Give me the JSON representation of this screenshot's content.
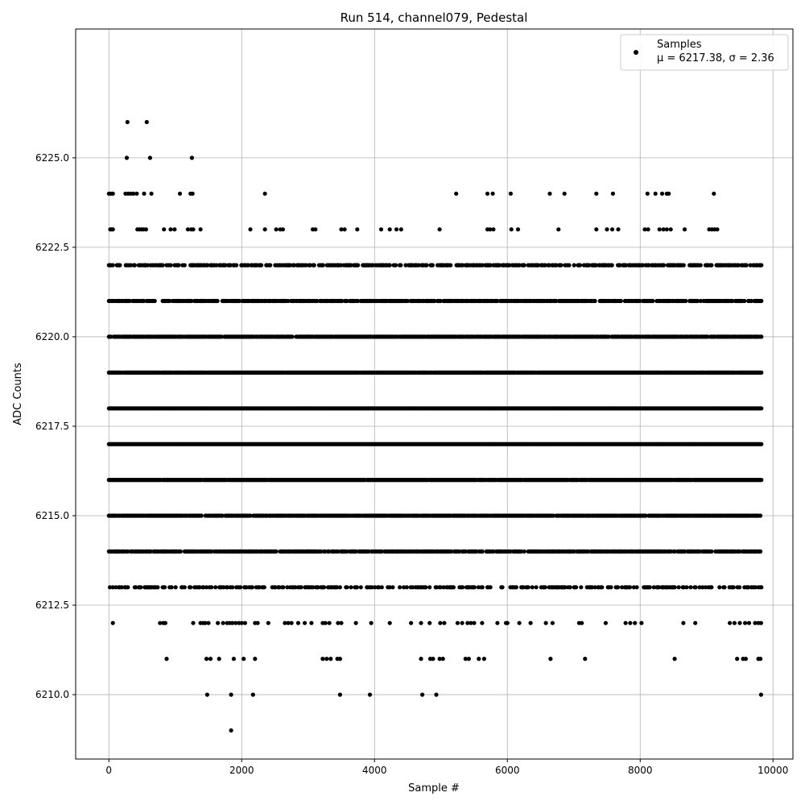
{
  "chart_data": {
    "type": "scatter",
    "title": "Run 514, channel079, Pedestal",
    "xlabel": "Sample #",
    "ylabel": "ADC Counts",
    "xlim": [
      -500,
      10300
    ],
    "ylim": [
      6208.2,
      6228.6
    ],
    "grid": true,
    "legend_placement": "top-right",
    "xticks": [
      0,
      2000,
      4000,
      6000,
      8000,
      10000
    ],
    "xtick_labels": [
      "0",
      "2000",
      "4000",
      "6000",
      "8000",
      "10000"
    ],
    "yticks": [
      6210.0,
      6212.5,
      6215.0,
      6217.5,
      6220.0,
      6222.5,
      6225.0
    ],
    "ytick_labels": [
      "6210.0",
      "6212.5",
      "6215.0",
      "6217.5",
      "6220.0",
      "6222.5",
      "6225.0"
    ],
    "series": [
      {
        "name": "Samples",
        "color": "#000000",
        "marker": "circle",
        "n_samples": 9830,
        "levels": [
          {
            "y": 6226,
            "x": [
              280,
              570
            ]
          },
          {
            "y": 6225,
            "x": [
              270,
              620,
              1250
            ]
          },
          {
            "y": 6224,
            "x": [
              0,
              30,
              60,
              250,
              290,
              330,
              370,
              420,
              530,
              640,
              1070,
              1230,
              1260,
              2350,
              5230,
              5700,
              5780,
              6050,
              6640,
              6860,
              7340,
              7590,
              8110,
              8230,
              8330,
              8400,
              8430,
              9110
            ]
          },
          {
            "y": 6223,
            "x": [
              20,
              40,
              60,
              430,
              460,
              490,
              520,
              560,
              830,
              930,
              990,
              1190,
              1240,
              1270,
              1380,
              2130,
              2350,
              2520,
              2580,
              2620,
              3070,
              3110,
              3500,
              3550,
              3740,
              4100,
              4230,
              4330,
              4400,
              4980,
              5700,
              5740,
              5790,
              6060,
              6160,
              6770,
              7340,
              7500,
              7580,
              7670,
              8070,
              8120,
              8290,
              8350,
              8400,
              8460,
              8670,
              9040,
              9080,
              9120,
              9160
            ]
          },
          {
            "y": 6222,
            "span": [
              0,
              9830
            ],
            "density": 0.6
          },
          {
            "y": 6221,
            "span": [
              0,
              9830
            ],
            "density": 0.75
          },
          {
            "y": 6220,
            "span": [
              0,
              9830
            ],
            "density": 0.9
          },
          {
            "y": 6219,
            "span": [
              0,
              9830
            ],
            "density": 0.97
          },
          {
            "y": 6218,
            "span": [
              0,
              9830
            ],
            "density": 1.0
          },
          {
            "y": 6217,
            "span": [
              0,
              9830
            ],
            "density": 1.0
          },
          {
            "y": 6216,
            "span": [
              0,
              9830
            ],
            "density": 0.97
          },
          {
            "y": 6215,
            "span": [
              0,
              9830
            ],
            "density": 0.9
          },
          {
            "y": 6214,
            "span": [
              0,
              9830
            ],
            "density": 0.78
          },
          {
            "y": 6213,
            "span": [
              0,
              9830
            ],
            "density": 0.45
          },
          {
            "y": 6212,
            "x": [
              60,
              770,
              820,
              850,
              1270,
              1380,
              1420,
              1450,
              1500,
              1640,
              1720,
              1780,
              1820,
              1860,
              1910,
              1960,
              2000,
              2050,
              2200,
              2240,
              2400,
              2650,
              2700,
              2750,
              2850,
              2950,
              3050,
              3220,
              3260,
              3320,
              3450,
              3500,
              3720,
              3950,
              4230,
              4550,
              4700,
              4830,
              4990,
              5050,
              5250,
              5320,
              5400,
              5450,
              5500,
              5620,
              5850,
              5980,
              6000,
              6180,
              6350,
              6580,
              6680,
              7080,
              7120,
              7480,
              7780,
              7850,
              7920,
              8020,
              8650,
              8830,
              9350,
              9420,
              9500,
              9580,
              9640,
              9730,
              9780,
              9820
            ]
          },
          {
            "y": 6211,
            "x": [
              870,
              1470,
              1530,
              1660,
              1880,
              2030,
              2200,
              3220,
              3280,
              3340,
              3440,
              3480,
              4700,
              4840,
              4880,
              4980,
              5030,
              5370,
              5420,
              5570,
              5650,
              6650,
              7170,
              8520,
              9460,
              9550,
              9590,
              9780,
              9810
            ]
          },
          {
            "y": 6210,
            "x": [
              1480,
              1840,
              2170,
              3480,
              3930,
              4720,
              4930,
              9820
            ]
          },
          {
            "y": 6209,
            "x": [
              1840
            ]
          }
        ]
      }
    ],
    "legend": {
      "series_label": "Samples",
      "stats_label": "μ = 6217.38, σ = 2.36"
    }
  }
}
